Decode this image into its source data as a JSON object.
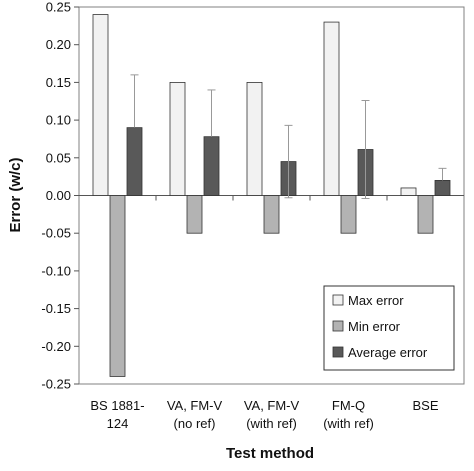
{
  "chart_data": {
    "type": "bar",
    "title": "",
    "xlabel": "Test method",
    "ylabel": "Error (w/c)",
    "ylim": [
      -0.25,
      0.25
    ],
    "yticks": [
      0.25,
      0.2,
      0.15,
      0.1,
      0.05,
      0.0,
      -0.05,
      -0.1,
      -0.15,
      -0.2,
      -0.25
    ],
    "ytick_labels": [
      "0.25",
      "0.20",
      "0.15",
      "0.10",
      "0.05",
      "0.00",
      "-0.05",
      "-0.10",
      "-0.15",
      "-0.20",
      "-0.25"
    ],
    "grid": false,
    "legend_position": "bottom-right",
    "categories": [
      [
        "BS 1881-",
        "124"
      ],
      [
        "VA, FM-V",
        "(no ref)"
      ],
      [
        "VA, FM-V",
        "(with ref)"
      ],
      [
        "FM-Q",
        "(with ref)"
      ],
      [
        "BSE"
      ]
    ],
    "series": [
      {
        "name": "Max error",
        "color": "#f2f2f2",
        "values": [
          0.24,
          0.15,
          0.15,
          0.23,
          0.01
        ]
      },
      {
        "name": "Min error",
        "color": "#b3b3b3",
        "values": [
          -0.24,
          -0.05,
          -0.05,
          -0.05,
          -0.05
        ]
      },
      {
        "name": "Average error",
        "color": "#595959",
        "values": [
          0.09,
          0.078,
          0.045,
          0.061,
          0.02
        ],
        "error_upper": [
          0.16,
          0.14,
          0.093,
          0.126,
          0.036
        ],
        "error_lower": [
          0.09,
          0.078,
          -0.003,
          -0.004,
          0.02
        ]
      }
    ]
  }
}
